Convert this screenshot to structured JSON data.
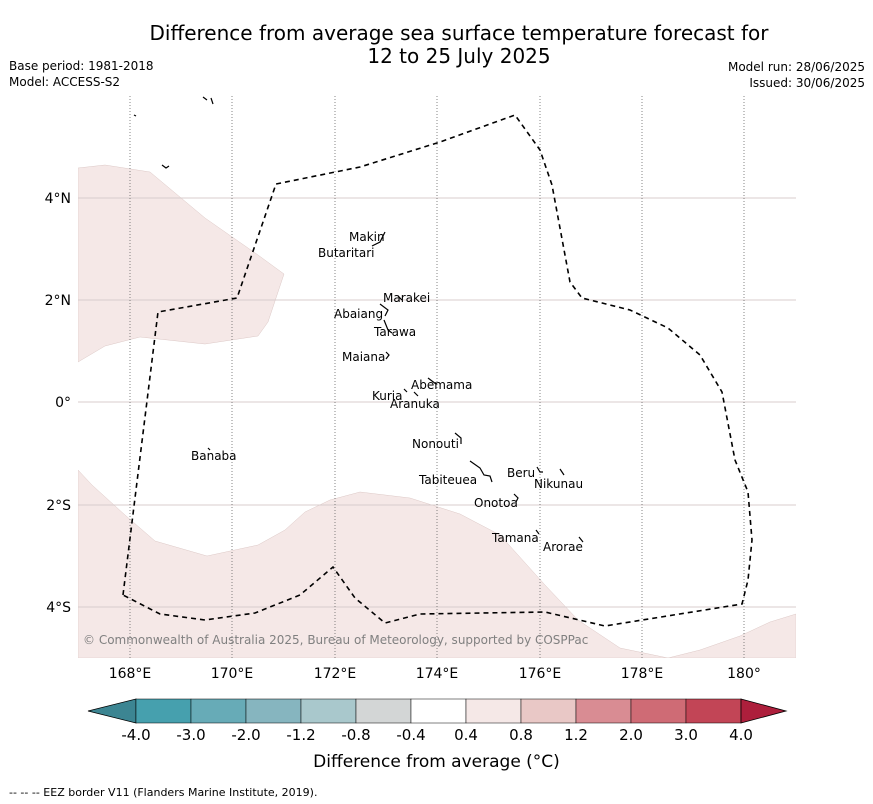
{
  "title_line1": "Difference from average sea surface temperature forecast for",
  "title_line2": "12 to 25 July 2025",
  "base_period": "Base period: 1981-2018",
  "model": "Model: ACCESS-S2",
  "model_run": "Model run: 28/06/2025",
  "issued": "Issued: 30/06/2025",
  "x_ticks": [
    "168°E",
    "170°E",
    "172°E",
    "174°E",
    "176°E",
    "178°E",
    "180°"
  ],
  "y_ticks": [
    "4°N",
    "2°N",
    "0°",
    "2°S",
    "4°S"
  ],
  "places": [
    "Makin",
    "Butaritari",
    "Marakei",
    "Abaiang",
    "Tarawa",
    "Maiana",
    "Abemama",
    "Kuria",
    "Aranuka",
    "Banaba",
    "Nonouti",
    "Beru",
    "Nikunau",
    "Tabiteuea",
    "Onotoa",
    "Tamana",
    "Arorae"
  ],
  "copyright": "© Commonwealth of Australia 2025, Bureau of Meteorology, supported by COSPPac",
  "colorbar": {
    "ticks": [
      "-4.0",
      "-3.0",
      "-2.0",
      "-1.2",
      "-0.8",
      "-0.4",
      "0.4",
      "0.8",
      "1.2",
      "2.0",
      "3.0",
      "4.0"
    ],
    "colors": [
      "#3c8592",
      "#46a0ae",
      "#67abb7",
      "#86b5bf",
      "#a9c8cc",
      "#d3d6d6",
      "#ffffff",
      "#f5e8e7",
      "#e9c8c6",
      "#d98c93",
      "#cf6b75",
      "#c24556",
      "#ad1f3c"
    ],
    "label": "Difference from average (°C)"
  },
  "footer": "--  --  -- EEZ border V11 (Flanders Marine Institute, 2019)."
}
